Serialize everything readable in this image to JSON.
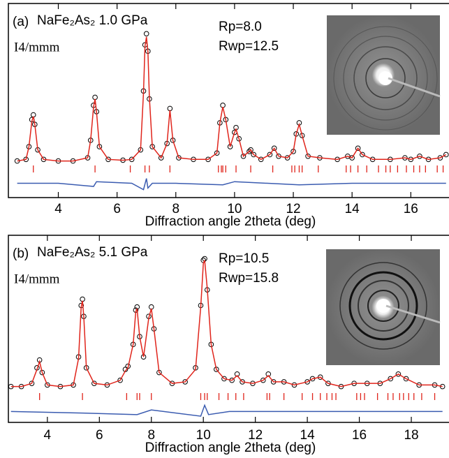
{
  "chart_data": [
    {
      "type": "line",
      "label": "(a)",
      "sample": "NaFe₂As₂ 1.0 GPa",
      "space_group": "I4/mmm",
      "annotations": [
        "Rp=8.0",
        "Rwp=12.5"
      ],
      "xlabel": "Diffraction angle 2theta (deg)",
      "xlim": [
        2.3,
        17.3
      ],
      "xticks": [
        4,
        6,
        8,
        10,
        12,
        14,
        16
      ],
      "ylim": [
        -22,
        100
      ],
      "series": [
        {
          "marker": "circle",
          "color": "#000000",
          "x": [
            2.6,
            2.9,
            3.0,
            3.1,
            3.15,
            3.2,
            3.3,
            3.5,
            4.0,
            4.5,
            5.0,
            5.1,
            5.2,
            5.25,
            5.3,
            5.4,
            5.7,
            6.2,
            6.5,
            6.8,
            6.9,
            6.95,
            7.0,
            7.05,
            7.1,
            7.2,
            7.5,
            7.7,
            7.8,
            7.9,
            8.1,
            8.6,
            9.1,
            9.4,
            9.5,
            9.6,
            9.7,
            9.85,
            10.0,
            10.05,
            10.15,
            10.3,
            10.5,
            10.55,
            10.65,
            10.9,
            11.2,
            11.35,
            11.5,
            11.8,
            12.0,
            12.1,
            12.2,
            12.3,
            12.5,
            12.9,
            13.5,
            13.85,
            14.0,
            14.2,
            14.35,
            14.7,
            15.3,
            15.8,
            16.0,
            16.3,
            16.6,
            17.0,
            17.2
          ],
          "values": [
            1,
            2,
            10,
            27,
            30,
            24,
            8,
            2,
            1,
            1,
            3,
            14,
            36,
            41,
            32,
            10,
            2,
            1.5,
            2,
            8,
            45,
            74,
            81,
            70,
            40,
            10,
            3,
            12,
            34,
            14,
            3,
            2,
            2,
            6,
            25,
            36,
            27,
            10,
            19,
            22,
            15,
            4,
            7,
            8,
            5,
            2,
            5,
            9,
            4,
            3,
            7,
            18,
            25,
            17,
            4,
            3,
            2,
            4,
            3,
            9,
            5,
            2,
            2,
            3,
            2,
            4,
            2,
            3,
            5
          ]
        },
        {
          "marker": "line",
          "color": "#e0241b",
          "x": [
            2.6,
            2.9,
            3.0,
            3.1,
            3.15,
            3.2,
            3.3,
            3.5,
            4.0,
            4.5,
            5.0,
            5.1,
            5.2,
            5.25,
            5.3,
            5.4,
            5.7,
            6.2,
            6.5,
            6.8,
            6.9,
            6.95,
            7.0,
            7.05,
            7.1,
            7.2,
            7.5,
            7.7,
            7.8,
            7.9,
            8.1,
            8.6,
            9.1,
            9.4,
            9.5,
            9.6,
            9.7,
            9.85,
            10.0,
            10.05,
            10.15,
            10.3,
            10.5,
            10.55,
            10.65,
            10.9,
            11.2,
            11.35,
            11.5,
            11.8,
            12.0,
            12.1,
            12.2,
            12.3,
            12.5,
            12.9,
            13.5,
            13.85,
            14.0,
            14.2,
            14.35,
            14.7,
            15.3,
            15.8,
            16.0,
            16.3,
            16.6,
            17.0,
            17.2
          ],
          "values": [
            1,
            2,
            10,
            26,
            29,
            24,
            8,
            2,
            1,
            1,
            3,
            14,
            35,
            40,
            32,
            10,
            2,
            1.5,
            2,
            8,
            44,
            73,
            79,
            70,
            41,
            10,
            3,
            12,
            33,
            14,
            3,
            2,
            2,
            6,
            25,
            35,
            27,
            10,
            19,
            21,
            15,
            4,
            7,
            8,
            5,
            2,
            5,
            9,
            4,
            3,
            7,
            18,
            24,
            17,
            4,
            3,
            2,
            4,
            3,
            9,
            5,
            2,
            2,
            3,
            2,
            4,
            2,
            3,
            5
          ]
        },
        {
          "marker": "line",
          "color": "#3a5bb0",
          "x": [
            2.6,
            4.0,
            5.2,
            5.3,
            6.5,
            6.9,
            7.0,
            7.05,
            7.2,
            8.0,
            9.6,
            10.0,
            12.2,
            14.0,
            17.2
          ],
          "values": [
            -13,
            -13,
            -15,
            -12,
            -13,
            -17,
            -10,
            -16,
            -13,
            -13,
            -14,
            -12,
            -14,
            -13,
            -13
          ]
        }
      ],
      "reflections": {
        "color": "#e0241b",
        "x": [
          3.15,
          5.25,
          6.45,
          6.95,
          7.1,
          7.8,
          9.45,
          9.55,
          9.6,
          9.7,
          10.05,
          10.55,
          11.3,
          11.95,
          12.05,
          12.2,
          12.3,
          12.85,
          13.8,
          13.95,
          14.2,
          14.5,
          14.9,
          15.15,
          15.3,
          15.55,
          15.85,
          16.1,
          16.3,
          16.5,
          16.9,
          17.1
        ]
      }
    },
    {
      "type": "line",
      "label": "(b)",
      "sample": "NaFe₂As₂ 5.1 GPa",
      "space_group": "I4/mmm",
      "annotations": [
        "Rp=10.5",
        "Rwp=15.8"
      ],
      "xlabel": "Diffraction angle 2theta (deg)",
      "xlim": [
        2.5,
        19.45
      ],
      "xticks": [
        4,
        6,
        8,
        10,
        12,
        14,
        16,
        18
      ],
      "ylim": [
        -20,
        100
      ],
      "series": [
        {
          "marker": "circle",
          "color": "#000000",
          "x": [
            2.6,
            3.0,
            3.4,
            3.6,
            3.7,
            3.8,
            4.0,
            4.5,
            5.0,
            5.2,
            5.3,
            5.35,
            5.4,
            5.5,
            5.8,
            6.3,
            6.8,
            7.0,
            7.1,
            7.3,
            7.4,
            7.45,
            7.55,
            7.7,
            7.9,
            8.0,
            8.1,
            8.3,
            8.8,
            9.3,
            9.7,
            9.9,
            10.0,
            10.05,
            10.15,
            10.3,
            10.5,
            10.8,
            11.1,
            11.3,
            11.5,
            11.9,
            12.3,
            12.5,
            12.7,
            13.1,
            13.5,
            14.0,
            14.2,
            14.5,
            14.8,
            15.3,
            15.8,
            16.3,
            16.8,
            17.2,
            17.5,
            17.8,
            18.3,
            18.9,
            19.2
          ],
          "values": [
            3,
            3,
            5,
            15,
            20,
            12,
            4,
            3,
            4,
            22,
            55,
            59,
            48,
            15,
            5,
            4,
            7,
            14,
            16,
            30,
            52,
            54,
            35,
            22,
            48,
            54,
            40,
            12,
            5,
            6,
            15,
            55,
            84,
            85,
            65,
            30,
            14,
            8,
            7,
            11,
            6,
            5,
            7,
            11,
            6,
            6,
            4,
            6,
            8,
            9,
            5,
            3,
            5,
            5,
            5,
            8,
            11,
            8,
            4,
            4,
            3
          ]
        },
        {
          "marker": "line",
          "color": "#e0241b",
          "x": [
            2.6,
            3.0,
            3.4,
            3.6,
            3.7,
            3.8,
            4.0,
            4.5,
            5.0,
            5.2,
            5.3,
            5.35,
            5.4,
            5.5,
            5.8,
            6.3,
            6.8,
            7.0,
            7.1,
            7.3,
            7.4,
            7.45,
            7.55,
            7.7,
            7.9,
            8.0,
            8.1,
            8.3,
            8.8,
            9.3,
            9.7,
            9.9,
            10.0,
            10.05,
            10.15,
            10.3,
            10.5,
            10.8,
            11.1,
            11.3,
            11.5,
            11.9,
            12.3,
            12.5,
            12.7,
            13.1,
            13.5,
            14.0,
            14.2,
            14.5,
            14.8,
            15.3,
            15.8,
            16.3,
            16.8,
            17.2,
            17.5,
            17.8,
            18.3,
            18.9,
            19.2
          ],
          "values": [
            3,
            3,
            5,
            14,
            19,
            12,
            4,
            3,
            4,
            21,
            54,
            58,
            48,
            15,
            5,
            4,
            7,
            13,
            15,
            30,
            51,
            53,
            35,
            22,
            47,
            53,
            40,
            12,
            5,
            6,
            14,
            54,
            82,
            84,
            66,
            30,
            14,
            8,
            7,
            10,
            6,
            5,
            7,
            10,
            6,
            6,
            4,
            6,
            8,
            9,
            5,
            3,
            5,
            5,
            5,
            8,
            11,
            8,
            4,
            4,
            3
          ]
        },
        {
          "marker": "line",
          "color": "#3a5bb0",
          "x": [
            2.6,
            5.35,
            7.45,
            8.0,
            9.9,
            10.05,
            10.2,
            11.0,
            14.0,
            19.2
          ],
          "values": [
            -13,
            -14,
            -15,
            -12,
            -16,
            -9,
            -15,
            -13,
            -13,
            -13
          ]
        }
      ],
      "reflections": {
        "color": "#e0241b",
        "x": [
          3.7,
          5.35,
          7.05,
          7.45,
          7.55,
          8.0,
          9.9,
          10.05,
          10.15,
          10.6,
          10.95,
          11.25,
          11.55,
          12.45,
          12.55,
          13.1,
          13.8,
          14.2,
          14.5,
          14.75,
          14.95,
          15.1,
          15.9,
          16.05,
          16.2,
          16.7,
          17.1,
          17.3,
          17.55,
          17.7,
          17.9,
          18.1,
          18.4,
          18.9
        ]
      }
    }
  ]
}
